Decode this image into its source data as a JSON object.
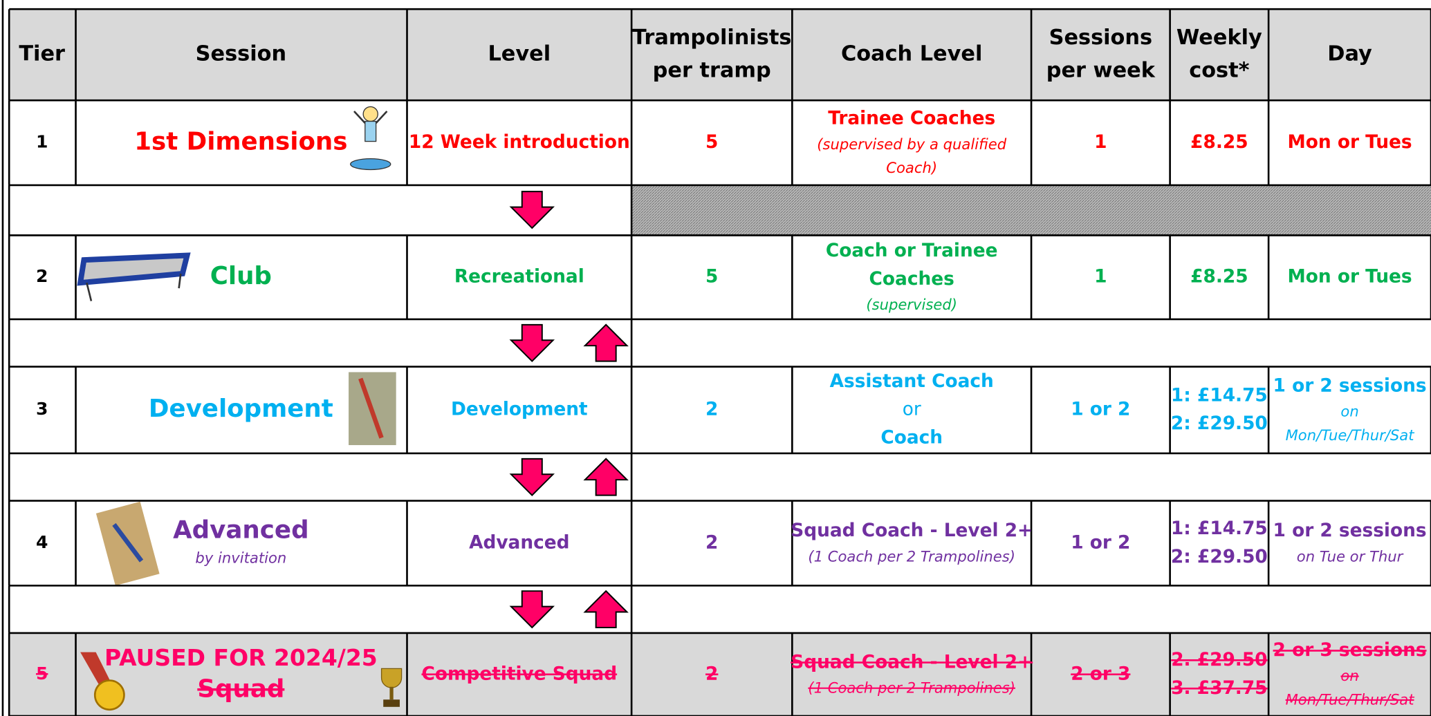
{
  "table": {
    "header": [
      "Tier",
      "Session",
      "Level",
      [
        "Trampolinists",
        "per tramp"
      ],
      "Coach Level",
      [
        "Sessions",
        "per week"
      ],
      [
        "Weekly",
        "cost*"
      ],
      "Day"
    ],
    "rows": [
      [
        "1",
        "1st Dimensions",
        "12 Week introduction",
        "5",
        [
          "Trainee Coaches",
          "(supervised by a qualified",
          "Coach)"
        ],
        "1",
        "£8.25",
        "Mon or Tues"
      ],
      [
        "2",
        "Club",
        "Recreational",
        "5",
        [
          "Coach or Trainee",
          "Coaches",
          "(supervised)"
        ],
        "1",
        "£8.25",
        "Mon or Tues"
      ],
      [
        "3",
        "Development",
        "Development",
        "2",
        [
          "Assistant Coach",
          "or",
          "Coach"
        ],
        "1 or 2",
        [
          "1: £14.75",
          "2: £29.50"
        ],
        [
          "1 or 2 sessions",
          "on",
          "Mon/Tue/Thur/Sat"
        ]
      ],
      [
        "4",
        [
          "Advanced",
          "by invitation"
        ],
        "Advanced",
        "2",
        [
          "Squad Coach - Level 2+",
          "(1 Coach per 2 Trampolines)"
        ],
        "1 or 2",
        [
          "1: £14.75",
          "2: £29.50"
        ],
        [
          "1 or 2 sessions",
          "on Tue or Thur"
        ]
      ],
      [
        "5",
        [
          "PAUSED FOR 2024/25",
          "Squad"
        ],
        "Competitive Squad",
        "2",
        [
          "Squad Coach - Level 2+",
          "(1 Coach per 2 Trampolines)"
        ],
        "2 or 3",
        [
          "2. £29.50",
          "3. £37.75"
        ],
        [
          "2 or 3 sessions",
          "on",
          "Mon/Tue/Thur/Sat"
        ]
      ]
    ]
  }
}
